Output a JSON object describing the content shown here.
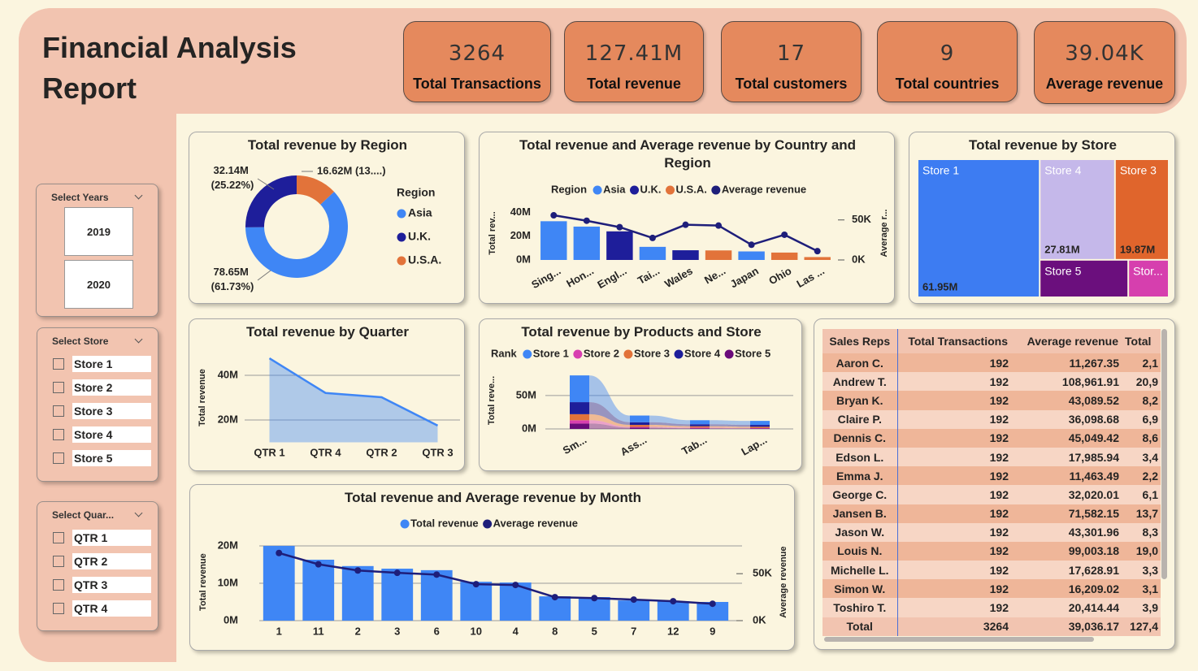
{
  "header": {
    "title": "Financial Analysis Report"
  },
  "kpis": [
    {
      "value": "3264",
      "label": "Total Transactions"
    },
    {
      "value": "127.41M",
      "label": "Total revenue"
    },
    {
      "value": "17",
      "label": "Total customers"
    },
    {
      "value": "9",
      "label": "Total countries"
    },
    {
      "value": "39.04K",
      "label": "Average revenue"
    }
  ],
  "slicers": [
    {
      "title": "Select Years",
      "items": [
        "2019",
        "2020"
      ]
    },
    {
      "title": "Select Store",
      "items": [
        "Store 1",
        "Store 2",
        "Store 3",
        "Store 4",
        "Store 5"
      ]
    },
    {
      "title": "Select Quar...",
      "items": [
        "QTR 1",
        "QTR 2",
        "QTR 3",
        "QTR 4"
      ]
    }
  ],
  "chart_data": [
    {
      "type": "pie",
      "donut": true,
      "title": "Total revenue by Region",
      "legend_title": "Region",
      "categories": [
        "Asia",
        "U.K.",
        "U.S.A."
      ],
      "values": [
        78.65,
        32.14,
        16.62
      ],
      "value_labels": [
        "78.65M (61.73%)",
        "32.14M (25.22%)",
        "16.62M (13....)"
      ],
      "colors": [
        "#3f86f5",
        "#1e1e9a",
        "#e2733a"
      ]
    },
    {
      "type": "combo",
      "title": "Total revenue and Average revenue by Country and Region",
      "legend_title": "Region",
      "categories": [
        "Sing...",
        "Hon...",
        "Engl...",
        "Tai...",
        "Wales",
        "Ne...",
        "Japan",
        "Ohio",
        "Las ..."
      ],
      "series": [
        {
          "name": "Asia",
          "color": "#3f86f5",
          "values": [
            32.5,
            28,
            null,
            11,
            null,
            null,
            7.15,
            null,
            null
          ]
        },
        {
          "name": "U.K.",
          "color": "#1e1e9a",
          "values": [
            null,
            null,
            24,
            null,
            8.14,
            null,
            null,
            null,
            null
          ]
        },
        {
          "name": "U.S.A.",
          "color": "#e2733a",
          "values": [
            null,
            null,
            null,
            null,
            null,
            8,
            null,
            6.2,
            2.42
          ]
        },
        {
          "name": "Average revenue",
          "color": "#1e1e7a",
          "axis": "y2",
          "values": [
            55.8,
            49,
            41,
            27.5,
            44,
            43,
            19,
            31.5,
            11
          ]
        }
      ],
      "ylabel": "Total rev...",
      "y2label": "Average r...",
      "ylim": [
        0,
        45
      ],
      "yticks": [
        {
          "value": 0,
          "label": "0M"
        },
        {
          "value": 20,
          "label": "20M"
        },
        {
          "value": 40,
          "label": "40M"
        }
      ],
      "y2lim": [
        0,
        67
      ],
      "y2ticks": [
        {
          "value": 0,
          "label": "0K"
        },
        {
          "value": 50,
          "label": "50K"
        }
      ],
      "grid": false
    },
    {
      "type": "treemap",
      "title": "Total revenue by Store",
      "categories": [
        "Store 1",
        "Store 4",
        "Store 3",
        "Store 5",
        "Stor..."
      ],
      "values": [
        61.95,
        27.81,
        19.87,
        12.2,
        5.58
      ],
      "value_labels": [
        "61.95M",
        "27.81M",
        "19.87M",
        null,
        null
      ],
      "colors": [
        "#3d7cf2",
        "#c5b8ea",
        "#e0652c",
        "#6b0f7d",
        "#d63fae"
      ]
    },
    {
      "type": "area",
      "title": "Total revenue by Quarter",
      "categories": [
        "QTR 1",
        "QTR 4",
        "QTR 2",
        "QTR 3"
      ],
      "values": [
        47.6,
        32.1,
        30.2,
        17.5
      ],
      "color": "#3f86f5",
      "ylabel": "Total revenue",
      "ylim": [
        10,
        50
      ],
      "yticks": [
        {
          "value": 20,
          "label": "20M"
        },
        {
          "value": 40,
          "label": "40M"
        }
      ],
      "grid": true
    },
    {
      "type": "ribbon",
      "title": "Total revenue by Products and Store",
      "legend_title": "Rank",
      "categories": [
        "Sm...",
        "Ass...",
        "Tab...",
        "Lap..."
      ],
      "series": [
        {
          "name": "Store 1",
          "color": "#3f86f5",
          "values": [
            40,
            10,
            6,
            6
          ]
        },
        {
          "name": "Store 2",
          "color": "#d83fb0",
          "values": [
            5,
            1,
            1,
            0.6
          ]
        },
        {
          "name": "Store 3",
          "color": "#e2733a",
          "values": [
            9,
            3,
            2,
            1.9
          ]
        },
        {
          "name": "Store 4",
          "color": "#1e1e9a",
          "values": [
            18,
            4,
            3,
            2.8
          ]
        },
        {
          "name": "Store 5",
          "color": "#6a0a7a",
          "values": [
            8,
            2,
            1,
            0.7
          ]
        }
      ],
      "ylabel": "Total reve...",
      "ylim": [
        0,
        85
      ],
      "yticks": [
        {
          "value": 0,
          "label": "0M"
        },
        {
          "value": 50,
          "label": "50M"
        }
      ],
      "grid": true
    },
    {
      "type": "combo",
      "title": "Total revenue and Average revenue by Month",
      "categories": [
        "1",
        "11",
        "2",
        "3",
        "6",
        "10",
        "4",
        "8",
        "5",
        "7",
        "12",
        "9"
      ],
      "series": [
        {
          "name": "Total revenue",
          "color": "#3f86f5",
          "values": [
            20,
            16.3,
            14.6,
            13.9,
            13.5,
            10.4,
            10.2,
            6.5,
            6.3,
            5.4,
            5.2,
            5.0
          ]
        },
        {
          "name": "Average revenue",
          "color": "#1e1e7a",
          "axis": "y2",
          "values": [
            72,
            60,
            53.4,
            50.9,
            49,
            38.8,
            38,
            25,
            24,
            22.4,
            20.7,
            18
          ]
        }
      ],
      "ylabel": "Total revenue",
      "y2label": "Average revenue",
      "ylim": [
        0,
        20.6
      ],
      "yticks": [
        {
          "value": 0,
          "label": "0M"
        },
        {
          "value": 10,
          "label": "10M"
        },
        {
          "value": 20,
          "label": "20M"
        }
      ],
      "y2lim": [
        0,
        82
      ],
      "y2ticks": [
        {
          "value": 0,
          "label": "0K"
        },
        {
          "value": 50,
          "label": "50K"
        }
      ],
      "grid": true
    }
  ],
  "table": {
    "columns": [
      "Sales Reps",
      "Total Transactions",
      "Average revenue",
      "Total"
    ],
    "rows": [
      [
        "Aaron C.",
        "192",
        "11,267.35",
        "2,1"
      ],
      [
        "Andrew T.",
        "192",
        "108,961.91",
        "20,9"
      ],
      [
        "Bryan K.",
        "192",
        "43,089.52",
        "8,2"
      ],
      [
        "Claire P.",
        "192",
        "36,098.68",
        "6,9"
      ],
      [
        "Dennis C.",
        "192",
        "45,049.42",
        "8,6"
      ],
      [
        "Edson L.",
        "192",
        "17,985.94",
        "3,4"
      ],
      [
        "Emma J.",
        "192",
        "11,463.49",
        "2,2"
      ],
      [
        "George C.",
        "192",
        "32,020.01",
        "6,1"
      ],
      [
        "Jansen B.",
        "192",
        "71,582.15",
        "13,7"
      ],
      [
        "Jason W.",
        "192",
        "43,301.96",
        "8,3"
      ],
      [
        "Louis N.",
        "192",
        "99,003.18",
        "19,0"
      ],
      [
        "Michelle L.",
        "192",
        "17,628.91",
        "3,3"
      ],
      [
        "Simon W.",
        "192",
        "16,209.02",
        "3,1"
      ],
      [
        "Toshiro T.",
        "192",
        "20,414.44",
        "3,9"
      ]
    ],
    "total": [
      "Total",
      "3264",
      "39,036.17",
      "127,4"
    ]
  }
}
